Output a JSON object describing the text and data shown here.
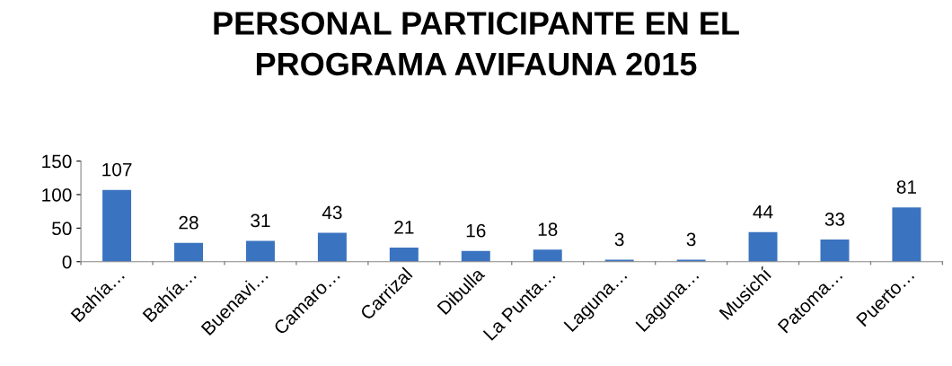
{
  "chart_data": {
    "type": "bar",
    "title": "PERSONAL PARTICIPANTE EN EL\nPROGRAMA AVIFAUNA 2015",
    "categories": [
      "Bahía…",
      "Bahía…",
      "Buenavi…",
      "Camaro…",
      "Carrizal",
      "Dibulla",
      "La Punta…",
      "Laguna…",
      "Laguna…",
      "Musichí",
      "Patoma…",
      "Puerto…"
    ],
    "values": [
      107,
      28,
      31,
      43,
      21,
      16,
      18,
      3,
      3,
      44,
      33,
      81
    ],
    "color": "#3a73bf",
    "ylim": [
      0,
      150
    ],
    "yticks": [
      0,
      50,
      100,
      150
    ],
    "grid": false,
    "data_labels": true
  }
}
